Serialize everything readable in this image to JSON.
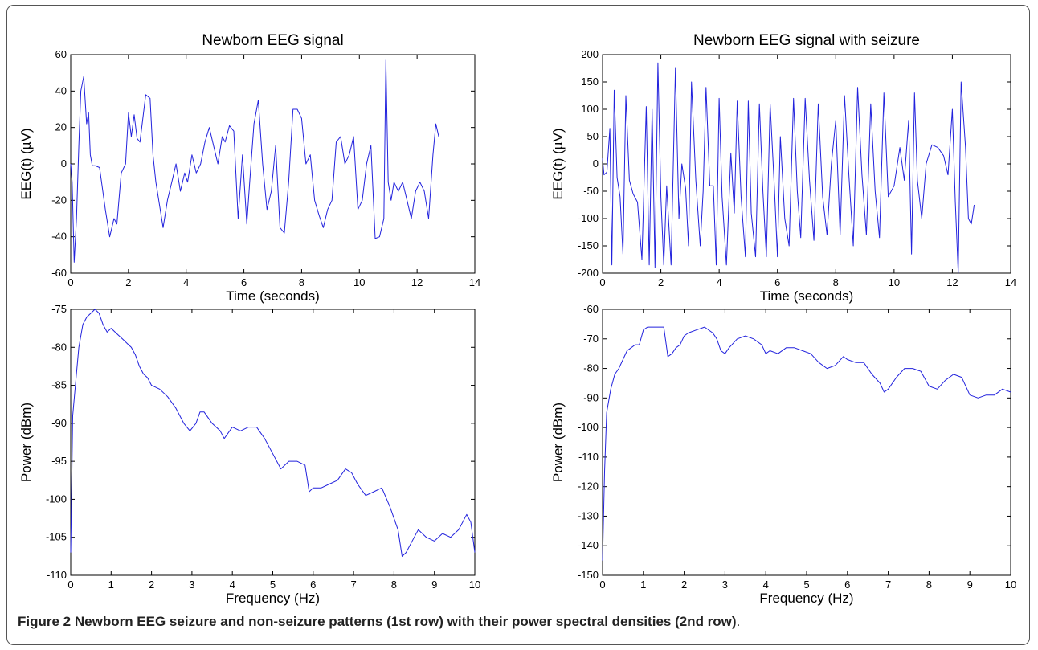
{
  "caption": {
    "label": "Figure 2",
    "text": "Newborn EEG seizure and non-seizure patterns (1st row) with their power spectral densities (2nd row)",
    "end": "."
  },
  "style": {
    "line_color": "#2222dd",
    "axis_color": "#000000"
  },
  "chart_data": [
    {
      "type": "line",
      "title": "Newborn EEG signal",
      "xlabel": "Time (seconds)",
      "ylabel": "EEG(t) (µV)",
      "xlim": [
        0,
        14
      ],
      "ylim": [
        -60,
        60
      ],
      "xticks": [
        0,
        2,
        4,
        6,
        8,
        10,
        12,
        14
      ],
      "yticks": [
        -60,
        -40,
        -20,
        0,
        20,
        40,
        60
      ],
      "series": [
        {
          "x": [
            0,
            0.05,
            0.12,
            0.2,
            0.28,
            0.35,
            0.45,
            0.55,
            0.62,
            0.68,
            0.75,
            0.85,
            1.0,
            1.2,
            1.35,
            1.5,
            1.6,
            1.75,
            1.9,
            2.0,
            2.1,
            2.2,
            2.3,
            2.4,
            2.5,
            2.6,
            2.75,
            2.85,
            2.95,
            3.05,
            3.2,
            3.35,
            3.5,
            3.65,
            3.8,
            3.95,
            4.05,
            4.2,
            4.35,
            4.5,
            4.65,
            4.8,
            4.95,
            5.1,
            5.25,
            5.35,
            5.5,
            5.65,
            5.8,
            5.95,
            6.1,
            6.2,
            6.35,
            6.5,
            6.65,
            6.8,
            6.95,
            7.1,
            7.25,
            7.4,
            7.55,
            7.7,
            7.85,
            8.0,
            8.15,
            8.3,
            8.45,
            8.6,
            8.75,
            8.9,
            9.05,
            9.2,
            9.35,
            9.5,
            9.65,
            9.8,
            9.95,
            10.1,
            10.25,
            10.4,
            10.55,
            10.7,
            10.85,
            10.92,
            11.0,
            11.1,
            11.2,
            11.35,
            11.5,
            11.65,
            11.8,
            11.95,
            12.1,
            12.25,
            12.4,
            12.55,
            12.65,
            12.75
          ],
          "y": [
            0,
            -10,
            -54,
            -30,
            10,
            40,
            48,
            22,
            28,
            5,
            -1,
            -1,
            -2,
            -25,
            -40,
            -30,
            -33,
            -5,
            0,
            28,
            15,
            27,
            14,
            12,
            25,
            38,
            36,
            5,
            -10,
            -20,
            -35,
            -20,
            -10,
            0,
            -15,
            -5,
            -10,
            5,
            -5,
            0,
            12,
            20,
            10,
            0,
            15,
            12,
            21,
            18,
            -30,
            5,
            -33,
            -10,
            22,
            35,
            0,
            -25,
            -15,
            10,
            -35,
            -38,
            -10,
            30,
            30,
            25,
            0,
            5,
            -20,
            -28,
            -35,
            -25,
            -20,
            12,
            15,
            0,
            5,
            15,
            -25,
            -20,
            0,
            10,
            -41,
            -40,
            -30,
            57,
            -10,
            -20,
            -10,
            -15,
            -10,
            -20,
            -30,
            -15,
            -10,
            -15,
            -30,
            5,
            22,
            15
          ]
        }
      ]
    },
    {
      "type": "line",
      "title": "Newborn EEG signal with seizure",
      "xlabel": "Time (seconds)",
      "ylabel": "EEG(t) (µV)",
      "xlim": [
        0,
        14
      ],
      "ylim": [
        -200,
        200
      ],
      "xticks": [
        0,
        2,
        4,
        6,
        8,
        10,
        12,
        14
      ],
      "yticks": [
        -200,
        -150,
        -100,
        -50,
        0,
        50,
        100,
        150,
        200
      ],
      "series": [
        {
          "x": [
            0,
            0.05,
            0.15,
            0.25,
            0.32,
            0.4,
            0.5,
            0.6,
            0.7,
            0.8,
            0.92,
            1.05,
            1.2,
            1.35,
            1.5,
            1.6,
            1.7,
            1.8,
            1.9,
            2.0,
            2.1,
            2.2,
            2.35,
            2.5,
            2.62,
            2.72,
            2.85,
            2.95,
            3.05,
            3.2,
            3.35,
            3.45,
            3.55,
            3.68,
            3.8,
            3.9,
            4.0,
            4.1,
            4.25,
            4.4,
            4.52,
            4.62,
            4.75,
            4.9,
            5.0,
            5.1,
            5.25,
            5.38,
            5.5,
            5.62,
            5.75,
            5.9,
            6.0,
            6.1,
            6.25,
            6.4,
            6.55,
            6.68,
            6.8,
            6.95,
            7.1,
            7.25,
            7.4,
            7.55,
            7.7,
            7.85,
            8.0,
            8.15,
            8.3,
            8.45,
            8.6,
            8.75,
            8.9,
            9.05,
            9.2,
            9.35,
            9.5,
            9.65,
            9.8,
            10.0,
            10.2,
            10.35,
            10.5,
            10.6,
            10.7,
            10.8,
            10.95,
            11.1,
            11.3,
            11.5,
            11.7,
            11.85,
            12.0,
            12.1,
            12.2,
            12.3,
            12.45,
            12.55,
            12.65,
            12.75
          ],
          "y": [
            10,
            -20,
            -15,
            65,
            -185,
            135,
            -25,
            -60,
            -165,
            125,
            -30,
            -55,
            -70,
            -175,
            105,
            -185,
            100,
            -190,
            185,
            -60,
            -185,
            -40,
            -185,
            175,
            -100,
            0,
            -45,
            -150,
            150,
            -30,
            -150,
            -50,
            140,
            -40,
            -40,
            -185,
            120,
            -60,
            -185,
            20,
            -90,
            115,
            -60,
            -170,
            115,
            -90,
            -170,
            110,
            -50,
            -170,
            110,
            -50,
            -170,
            50,
            -100,
            -150,
            120,
            -50,
            -135,
            120,
            -30,
            -140,
            110,
            -60,
            -130,
            0,
            80,
            -130,
            125,
            -20,
            -150,
            140,
            -20,
            -130,
            110,
            -50,
            -135,
            130,
            -60,
            -40,
            30,
            -30,
            80,
            -165,
            130,
            -30,
            -100,
            0,
            35,
            30,
            15,
            -20,
            100,
            -70,
            -200,
            150,
            30,
            -100,
            -110,
            -75
          ]
        }
      ]
    },
    {
      "type": "line",
      "title": "",
      "xlabel": "Frequency (Hz)",
      "ylabel": "Power (dBm)",
      "xlim": [
        0,
        10
      ],
      "ylim": [
        -110,
        -75
      ],
      "xticks": [
        0,
        1,
        2,
        3,
        4,
        5,
        6,
        7,
        8,
        9,
        10
      ],
      "yticks": [
        -110,
        -105,
        -100,
        -95,
        -90,
        -85,
        -80,
        -75
      ],
      "series": [
        {
          "x": [
            0,
            0.05,
            0.1,
            0.2,
            0.3,
            0.4,
            0.5,
            0.6,
            0.7,
            0.8,
            0.9,
            1.0,
            1.1,
            1.2,
            1.3,
            1.4,
            1.5,
            1.6,
            1.7,
            1.8,
            1.9,
            2.0,
            2.2,
            2.4,
            2.6,
            2.8,
            2.95,
            3.1,
            3.2,
            3.3,
            3.5,
            3.7,
            3.8,
            4.0,
            4.2,
            4.4,
            4.6,
            4.8,
            5.0,
            5.2,
            5.4,
            5.6,
            5.8,
            5.9,
            6.0,
            6.2,
            6.4,
            6.6,
            6.8,
            6.95,
            7.1,
            7.3,
            7.5,
            7.7,
            7.9,
            8.1,
            8.2,
            8.3,
            8.4,
            8.6,
            8.8,
            9.0,
            9.2,
            9.4,
            9.6,
            9.8,
            9.9,
            10.0
          ],
          "y": [
            -107,
            -89,
            -86,
            -80,
            -77,
            -76,
            -75.5,
            -75,
            -75.5,
            -77,
            -78,
            -77.5,
            -78,
            -78.5,
            -79,
            -79.5,
            -80,
            -81,
            -82.5,
            -83.5,
            -84,
            -85,
            -85.5,
            -86.5,
            -88,
            -90,
            -91,
            -90,
            -88.5,
            -88.5,
            -90,
            -91,
            -92,
            -90.5,
            -91,
            -90.5,
            -90.5,
            -92,
            -94,
            -96,
            -95,
            -95,
            -95.5,
            -99,
            -98.5,
            -98.5,
            -98,
            -97.5,
            -96,
            -96.5,
            -98,
            -99.5,
            -99,
            -98.5,
            -101,
            -104,
            -107.5,
            -107,
            -106,
            -104,
            -105,
            -105.5,
            -104.5,
            -105,
            -104,
            -102,
            -103,
            -107
          ]
        }
      ]
    },
    {
      "type": "line",
      "title": "",
      "xlabel": "Frequency (Hz)",
      "ylabel": "Power (dBm)",
      "xlim": [
        0,
        10
      ],
      "ylim": [
        -150,
        -60
      ],
      "xticks": [
        0,
        1,
        2,
        3,
        4,
        5,
        6,
        7,
        8,
        9,
        10
      ],
      "yticks": [
        -150,
        -140,
        -130,
        -120,
        -110,
        -100,
        -90,
        -80,
        -70,
        -60
      ],
      "series": [
        {
          "x": [
            0,
            0.05,
            0.1,
            0.2,
            0.3,
            0.4,
            0.5,
            0.6,
            0.7,
            0.8,
            0.9,
            1.0,
            1.1,
            1.2,
            1.3,
            1.4,
            1.5,
            1.6,
            1.7,
            1.8,
            1.9,
            2.0,
            2.1,
            2.3,
            2.5,
            2.7,
            2.8,
            2.9,
            3.0,
            3.1,
            3.3,
            3.5,
            3.7,
            3.9,
            4.0,
            4.1,
            4.3,
            4.5,
            4.7,
            4.9,
            5.1,
            5.3,
            5.5,
            5.7,
            5.9,
            6.0,
            6.2,
            6.4,
            6.6,
            6.8,
            6.9,
            7.0,
            7.2,
            7.4,
            7.6,
            7.8,
            8.0,
            8.2,
            8.4,
            8.6,
            8.8,
            9.0,
            9.2,
            9.4,
            9.6,
            9.8,
            10.0
          ],
          "y": [
            -145,
            -115,
            -95,
            -87,
            -82,
            -80,
            -77,
            -74,
            -73,
            -72,
            -72,
            -67,
            -66,
            -66,
            -66,
            -66,
            -66,
            -76,
            -75,
            -73,
            -72,
            -69,
            -68,
            -67,
            -66,
            -68,
            -70,
            -74,
            -75,
            -73,
            -70,
            -69,
            -70,
            -72,
            -75,
            -74,
            -75,
            -73,
            -73,
            -74,
            -75,
            -78,
            -80,
            -79,
            -76,
            -77,
            -78,
            -78,
            -82,
            -85,
            -88,
            -87,
            -83,
            -80,
            -80,
            -81,
            -86,
            -87,
            -84,
            -82,
            -83,
            -89,
            -90,
            -89,
            -89,
            -87,
            -88
          ]
        }
      ]
    }
  ]
}
